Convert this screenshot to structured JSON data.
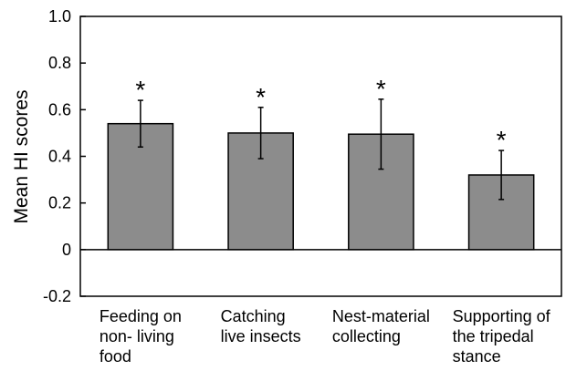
{
  "chart_data": {
    "type": "bar",
    "y_label": "Mean HI scores",
    "categories": [
      [
        "Feeding on",
        "non- living",
        "food"
      ],
      [
        "Catching",
        "live insects"
      ],
      [
        "Nest-material",
        "collecting"
      ],
      [
        "Supporting of",
        "the tripedal",
        "stance"
      ]
    ],
    "values": [
      0.54,
      0.5,
      0.495,
      0.32
    ],
    "errors": [
      0.1,
      0.11,
      0.15,
      0.105
    ],
    "annotations": [
      "*",
      "*",
      "*",
      "*"
    ],
    "color": "#8c8c8c",
    "ylim": [
      -0.2,
      1
    ],
    "yticks": [
      -0.2,
      0,
      0.2,
      0.4,
      0.6,
      0.8,
      {
        "value": 1,
        "label": "1.0"
      }
    ]
  }
}
